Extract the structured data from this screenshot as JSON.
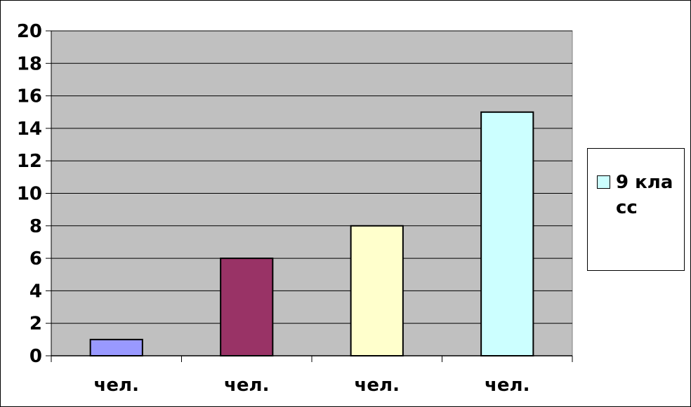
{
  "chart_data": {
    "type": "bar",
    "categories": [
      "чел.",
      "чел.",
      "чел.",
      "чел."
    ],
    "values": [
      1,
      6,
      8,
      15
    ],
    "bar_colors": [
      "#9999ff",
      "#993366",
      "#ffffcc",
      "#ccffff"
    ],
    "ylim": [
      0,
      20
    ],
    "yticks": [
      "0",
      "2",
      "4",
      "6",
      "8",
      "10",
      "12",
      "14",
      "16",
      "18",
      "20"
    ],
    "grid": true,
    "plot_background": "#c0c0c0",
    "legend": {
      "position": "right",
      "label": "9 класс",
      "color": "#ccffff"
    }
  }
}
